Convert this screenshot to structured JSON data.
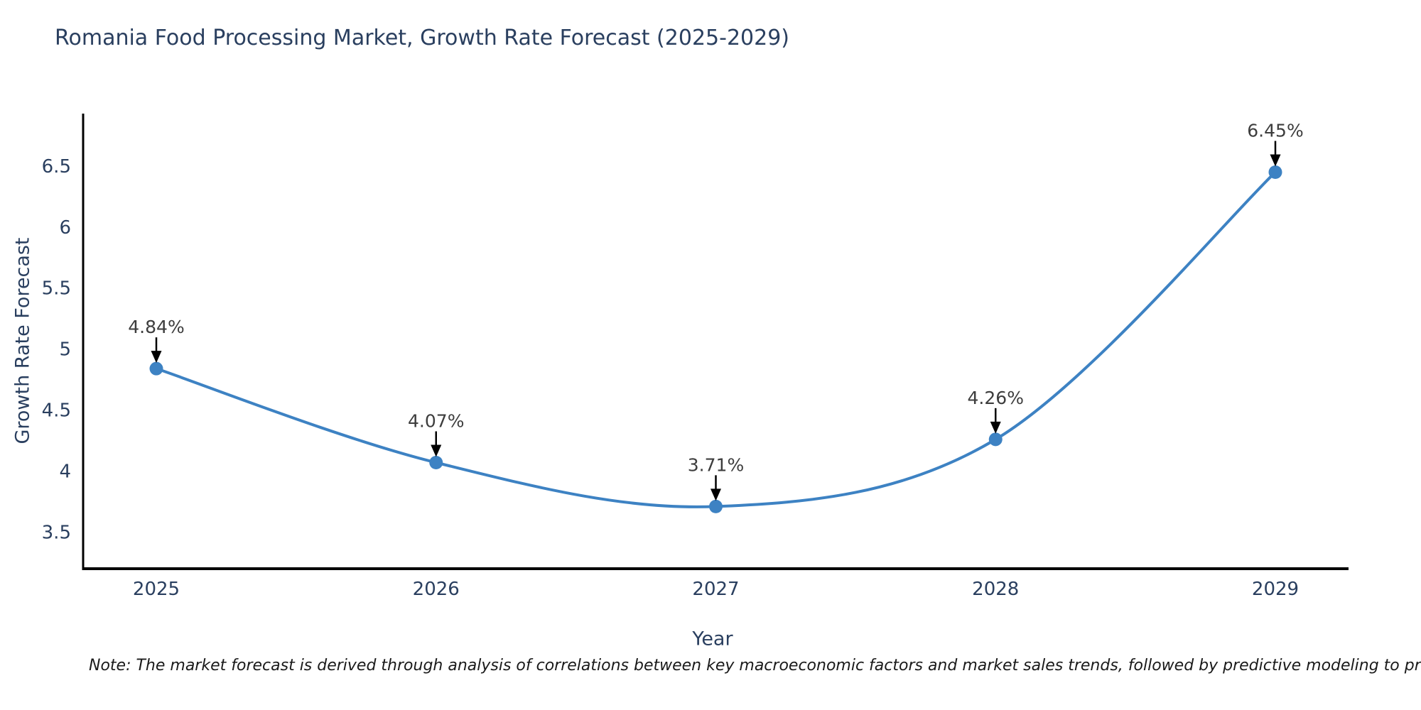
{
  "note": "Note: The market forecast is derived through analysis of correlations between key macroeconomic factors and market sales trends, followed by predictive modeling to project future sales",
  "chart_data": {
    "type": "line",
    "title": "Romania Food Processing Market, Growth Rate Forecast (2025-2029)",
    "xlabel": "Year",
    "ylabel": "Growth Rate Forecast",
    "categories": [
      "2025",
      "2026",
      "2027",
      "2028",
      "2029"
    ],
    "series": [
      {
        "name": "Growth Rate Forecast",
        "values": [
          4.84,
          4.07,
          3.71,
          4.26,
          6.45
        ]
      }
    ],
    "point_labels": [
      "4.84%",
      "4.07%",
      "3.71%",
      "4.26%",
      "6.45%"
    ],
    "yticks": [
      3.5,
      4,
      4.5,
      5,
      5.5,
      6,
      6.5
    ],
    "ylim": [
      3.2,
      6.93
    ],
    "line_style": "spline",
    "marker": "circle",
    "grid": false,
    "legend": "none",
    "colors": {
      "line": "#3d82c3",
      "marker": "#3d82c3",
      "axis": "#000000",
      "arrow": "#000000",
      "title_text": "#2a3f5f",
      "tick_text": "#2a3f5f",
      "annotation_text": "#3d3d3d",
      "background": "#ffffff"
    }
  }
}
